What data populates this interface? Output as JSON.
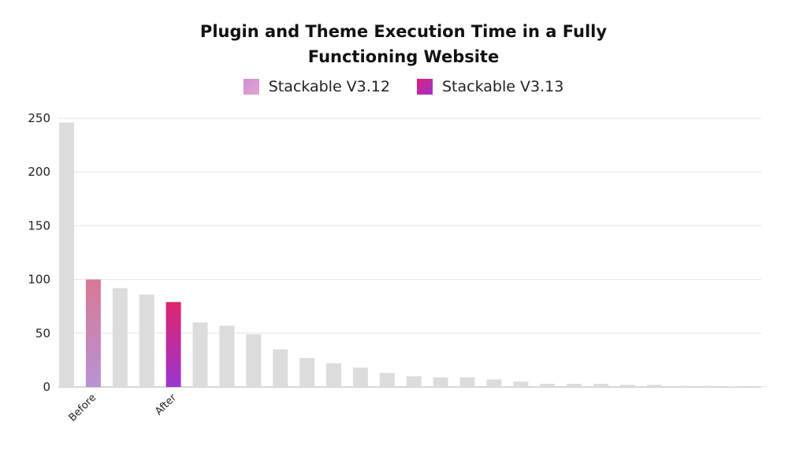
{
  "chart_data": {
    "type": "bar",
    "title_lines": [
      "Plugin and Theme Execution Time in a Fully",
      "Functioning Website"
    ],
    "ylim": [
      0,
      250
    ],
    "yticks": [
      0,
      50,
      100,
      150,
      200,
      250
    ],
    "grid": true,
    "legend_position": "top-center",
    "legend": [
      {
        "name": "Stackable V3.12",
        "colors": [
          "#cf8fd2",
          "#e6a3d1"
        ]
      },
      {
        "name": "Stackable V3.13",
        "colors": [
          "#df1f76",
          "#9a35cf"
        ]
      }
    ],
    "categories": [
      "",
      "Before",
      "",
      "",
      "After",
      "",
      "",
      "",
      "",
      "",
      "",
      "",
      "",
      "",
      "",
      "",
      "",
      "",
      "",
      "",
      "",
      "",
      "",
      "",
      "",
      "",
      ""
    ],
    "values": [
      246,
      100,
      92,
      86,
      79,
      60,
      57,
      49,
      35,
      27,
      22,
      18,
      13,
      10,
      9,
      9,
      7,
      5,
      3,
      3,
      3,
      2,
      2,
      1,
      1,
      0.5,
      0.5
    ],
    "highlight": {
      "1": {
        "top": "#d97896",
        "bottom": "#b892d6"
      },
      "4": {
        "top": "#e0246e",
        "bottom": "#9a36d0"
      }
    },
    "colors": {
      "bar": "#dcdcdc",
      "grid": "#e4e4e4",
      "axis": "#bdbdbd"
    }
  }
}
